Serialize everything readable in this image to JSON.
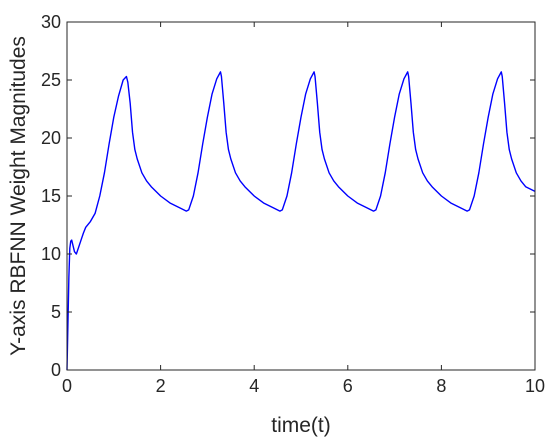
{
  "chart_data": {
    "type": "line",
    "xlabel": "time(t)",
    "ylabel": "Y-axis RBFNN Weight Magnitudes",
    "xlim": [
      0,
      10
    ],
    "ylim": [
      0,
      30
    ],
    "xticks": [
      0,
      2,
      4,
      6,
      8,
      10
    ],
    "yticks": [
      0,
      5,
      10,
      15,
      20,
      25,
      30
    ],
    "grid": false,
    "box": true,
    "series": [
      {
        "color": "#0000ff",
        "x": [
          0,
          0.02,
          0.04,
          0.06,
          0.08,
          0.1,
          0.13,
          0.16,
          0.2,
          0.25,
          0.3,
          0.35,
          0.4,
          0.5,
          0.6,
          0.7,
          0.8,
          0.9,
          1.0,
          1.1,
          1.2,
          1.27,
          1.3,
          1.35,
          1.4,
          1.45,
          1.5,
          1.6,
          1.7,
          1.8,
          2.0,
          2.2,
          2.4,
          2.55,
          2.6,
          2.7,
          2.8,
          2.9,
          3.0,
          3.1,
          3.2,
          3.28,
          3.3,
          3.35,
          3.4,
          3.45,
          3.5,
          3.6,
          3.7,
          3.8,
          4.0,
          4.2,
          4.4,
          4.55,
          4.6,
          4.7,
          4.8,
          4.9,
          5.0,
          5.1,
          5.2,
          5.28,
          5.3,
          5.35,
          5.4,
          5.45,
          5.5,
          5.6,
          5.7,
          5.8,
          6.0,
          6.2,
          6.4,
          6.55,
          6.6,
          6.7,
          6.8,
          6.9,
          7.0,
          7.1,
          7.2,
          7.28,
          7.3,
          7.35,
          7.4,
          7.45,
          7.5,
          7.6,
          7.7,
          7.8,
          8.0,
          8.2,
          8.4,
          8.55,
          8.6,
          8.7,
          8.8,
          8.9,
          9.0,
          9.1,
          9.2,
          9.28,
          9.3,
          9.35,
          9.4,
          9.45,
          9.5,
          9.6,
          9.7,
          9.8,
          10.0
        ],
        "y": [
          0,
          4,
          8,
          10.5,
          11.1,
          11.2,
          10.7,
          10.2,
          10.0,
          10.6,
          11.2,
          11.8,
          12.3,
          12.8,
          13.5,
          15.0,
          17.0,
          19.5,
          21.8,
          23.6,
          25.0,
          25.3,
          24.8,
          23.0,
          20.5,
          19.0,
          18.2,
          17.0,
          16.3,
          15.8,
          15.0,
          14.4,
          14.0,
          13.7,
          13.8,
          15.0,
          17.0,
          19.5,
          21.8,
          23.8,
          25.1,
          25.7,
          25.3,
          23.0,
          20.5,
          19.0,
          18.2,
          17.0,
          16.3,
          15.8,
          15.0,
          14.4,
          14.0,
          13.7,
          13.8,
          15.0,
          17.0,
          19.5,
          21.8,
          23.8,
          25.1,
          25.7,
          25.3,
          23.0,
          20.5,
          19.0,
          18.2,
          17.0,
          16.3,
          15.8,
          15.0,
          14.4,
          14.0,
          13.7,
          13.8,
          15.0,
          17.0,
          19.5,
          21.8,
          23.8,
          25.1,
          25.7,
          25.3,
          23.0,
          20.5,
          19.0,
          18.2,
          17.0,
          16.3,
          15.8,
          15.0,
          14.4,
          14.0,
          13.7,
          13.8,
          15.0,
          17.0,
          19.5,
          21.8,
          23.8,
          25.1,
          25.7,
          25.3,
          23.0,
          20.5,
          19.0,
          18.2,
          17.0,
          16.3,
          15.8,
          15.4
        ]
      }
    ]
  }
}
